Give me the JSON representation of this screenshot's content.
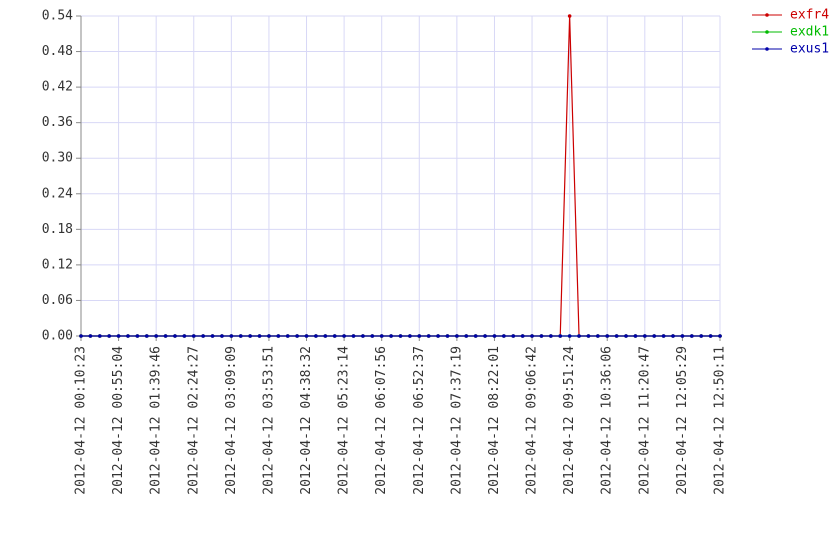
{
  "chart_data": {
    "type": "line",
    "x": [
      "2012-04-12 00:10:23",
      "2012-04-12 00:21:33",
      "2012-04-12 00:32:44",
      "2012-04-12 00:43:54",
      "2012-04-12 00:55:04",
      "2012-04-12 01:06:14",
      "2012-04-12 01:17:25",
      "2012-04-12 01:28:35",
      "2012-04-12 01:39:46",
      "2012-04-12 01:50:56",
      "2012-04-12 02:02:07",
      "2012-04-12 02:13:17",
      "2012-04-12 02:24:27",
      "2012-04-12 02:35:37",
      "2012-04-12 02:46:48",
      "2012-04-12 02:57:58",
      "2012-04-12 03:09:09",
      "2012-04-12 03:20:19",
      "2012-04-12 03:31:30",
      "2012-04-12 03:42:40",
      "2012-04-12 03:53:51",
      "2012-04-12 04:05:01",
      "2012-04-12 04:16:12",
      "2012-04-12 04:27:22",
      "2012-04-12 04:38:32",
      "2012-04-12 04:49:42",
      "2012-04-12 05:00:53",
      "2012-04-12 05:12:03",
      "2012-04-12 05:23:14",
      "2012-04-12 05:34:24",
      "2012-04-12 05:45:35",
      "2012-04-12 05:56:45",
      "2012-04-12 06:07:56",
      "2012-04-12 06:19:06",
      "2012-04-12 06:30:17",
      "2012-04-12 06:41:27",
      "2012-04-12 06:52:37",
      "2012-04-12 07:03:47",
      "2012-04-12 07:14:58",
      "2012-04-12 07:26:08",
      "2012-04-12 07:37:19",
      "2012-04-12 07:48:29",
      "2012-04-12 07:59:40",
      "2012-04-12 08:10:50",
      "2012-04-12 08:22:01",
      "2012-04-12 08:33:11",
      "2012-04-12 08:44:22",
      "2012-04-12 08:55:32",
      "2012-04-12 09:06:42",
      "2012-04-12 09:17:52",
      "2012-04-12 09:29:03",
      "2012-04-12 09:40:13",
      "2012-04-12 09:51:24",
      "2012-04-12 10:02:34",
      "2012-04-12 10:13:45",
      "2012-04-12 10:24:55",
      "2012-04-12 10:36:06",
      "2012-04-12 10:47:16",
      "2012-04-12 10:58:27",
      "2012-04-12 11:09:37",
      "2012-04-12 11:20:47",
      "2012-04-12 11:31:57",
      "2012-04-12 11:43:08",
      "2012-04-12 11:54:18",
      "2012-04-12 12:05:29",
      "2012-04-12 12:16:39",
      "2012-04-12 12:27:50",
      "2012-04-12 12:39:00",
      "2012-04-12 12:50:11"
    ],
    "series": [
      {
        "name": "exfr4",
        "color": "#cc0000",
        "values": [
          0,
          0,
          0,
          0,
          0,
          0,
          0,
          0,
          0,
          0,
          0,
          0,
          0,
          0,
          0,
          0,
          0,
          0,
          0,
          0,
          0,
          0,
          0,
          0,
          0,
          0,
          0,
          0,
          0,
          0,
          0,
          0,
          0,
          0,
          0,
          0,
          0,
          0,
          0,
          0,
          0,
          0,
          0,
          0,
          0,
          0,
          0,
          0,
          0,
          0,
          0,
          0,
          0.54,
          0,
          0,
          0,
          0,
          0,
          0,
          0,
          0,
          0,
          0,
          0,
          0,
          0,
          0,
          0,
          0
        ]
      },
      {
        "name": "exdk1",
        "color": "#00bb00",
        "values": [
          0,
          0,
          0,
          0,
          0,
          0,
          0,
          0,
          0,
          0,
          0,
          0,
          0,
          0,
          0,
          0,
          0,
          0,
          0,
          0,
          0,
          0,
          0,
          0,
          0,
          0,
          0,
          0,
          0,
          0,
          0,
          0,
          0,
          0,
          0,
          0,
          0,
          0,
          0,
          0,
          0,
          0,
          0,
          0,
          0,
          0,
          0,
          0,
          0,
          0,
          0,
          0,
          0,
          0,
          0,
          0,
          0,
          0,
          0,
          0,
          0,
          0,
          0,
          0,
          0,
          0,
          0,
          0,
          0
        ]
      },
      {
        "name": "exus1",
        "color": "#0000aa",
        "values": [
          0,
          0,
          0,
          0,
          0,
          0,
          0,
          0,
          0,
          0,
          0,
          0,
          0,
          0,
          0,
          0,
          0,
          0,
          0,
          0,
          0,
          0,
          0,
          0,
          0,
          0,
          0,
          0,
          0,
          0,
          0,
          0,
          0,
          0,
          0,
          0,
          0,
          0,
          0,
          0,
          0,
          0,
          0,
          0,
          0,
          0,
          0,
          0,
          0,
          0,
          0,
          0,
          0,
          0,
          0,
          0,
          0,
          0,
          0,
          0,
          0,
          0,
          0,
          0,
          0,
          0,
          0,
          0,
          0
        ]
      }
    ],
    "xlim": [
      "2012-04-12 00:10:23",
      "2012-04-12 12:50:11"
    ],
    "xticks": [
      "2012-04-12 00:10:23",
      "2012-04-12 00:55:04",
      "2012-04-12 01:39:46",
      "2012-04-12 02:24:27",
      "2012-04-12 03:09:09",
      "2012-04-12 03:53:51",
      "2012-04-12 04:38:32",
      "2012-04-12 05:23:14",
      "2012-04-12 06:07:56",
      "2012-04-12 06:52:37",
      "2012-04-12 07:37:19",
      "2012-04-12 08:22:01",
      "2012-04-12 09:06:42",
      "2012-04-12 09:51:24",
      "2012-04-12 10:36:06",
      "2012-04-12 11:20:47",
      "2012-04-12 12:05:29",
      "2012-04-12 12:50:11"
    ],
    "ylim": [
      0,
      0.54
    ],
    "yticks": [
      {
        "value": 0,
        "label": "0.00"
      },
      0.06,
      0.12,
      0.18,
      0.24,
      {
        "value": 0.3,
        "label": "0.30"
      },
      0.36,
      0.42,
      0.48,
      0.54
    ],
    "grid": true,
    "legend": "top-right"
  }
}
